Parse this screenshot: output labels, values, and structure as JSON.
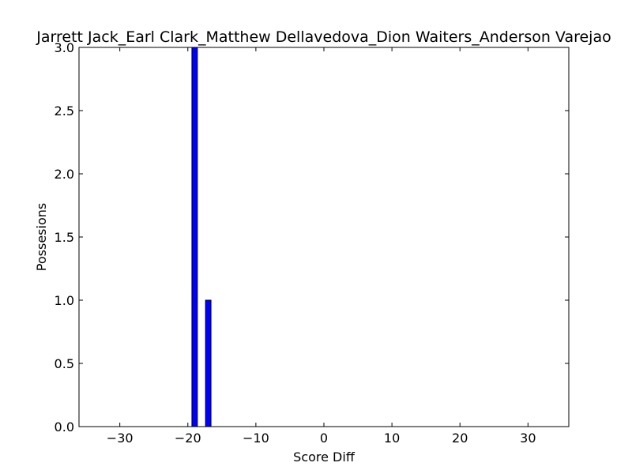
{
  "chart_data": {
    "type": "bar",
    "title": "Jarrett Jack_Earl Clark_Matthew Dellavedova_Dion Waiters_Anderson Varejao",
    "xlabel": "Score Diff",
    "ylabel": "Possesions",
    "xlim": [
      -36,
      36
    ],
    "ylim": [
      0,
      3.0
    ],
    "xticks": [
      -30,
      -20,
      -10,
      0,
      10,
      20,
      30
    ],
    "xtick_labels": [
      "−30",
      "−20",
      "−10",
      "0",
      "10",
      "20",
      "30"
    ],
    "yticks": [
      0.0,
      0.5,
      1.0,
      1.5,
      2.0,
      2.5,
      3.0
    ],
    "ytick_labels": [
      "0.0",
      "0.5",
      "1.0",
      "1.5",
      "2.0",
      "2.5",
      "3.0"
    ],
    "bar_width": 0.8,
    "bar_color": "#0000ff",
    "grid": false,
    "x": [
      -35,
      -34,
      -33,
      -32,
      -31,
      -30,
      -29,
      -28,
      -27,
      -26,
      -25,
      -24,
      -23,
      -22,
      -21,
      -20,
      -19,
      -18,
      -17,
      -16,
      -15,
      -14,
      -13,
      -12,
      -11,
      -10,
      -9,
      -8,
      -7,
      -6,
      -5,
      -4,
      -3,
      -2,
      -1,
      0,
      1,
      2,
      3,
      4,
      5,
      6,
      7,
      8,
      9,
      10,
      11,
      12,
      13,
      14,
      15,
      16,
      17,
      18,
      19,
      20,
      21,
      22,
      23,
      24,
      25,
      26,
      27,
      28,
      29,
      30,
      31,
      32,
      33,
      34,
      35
    ],
    "values": [
      0,
      0,
      0,
      0,
      0,
      0,
      0,
      0,
      0,
      0,
      0,
      0,
      0,
      0,
      0,
      0,
      3,
      0,
      1,
      0,
      0,
      0,
      0,
      0,
      0,
      0,
      0,
      0,
      0,
      0,
      0,
      0,
      0,
      0,
      0,
      0,
      0,
      0,
      0,
      0,
      0,
      0,
      0,
      0,
      0,
      0,
      0,
      0,
      0,
      0,
      0,
      0,
      0,
      0,
      0,
      0,
      0,
      0,
      0,
      0,
      0,
      0,
      0,
      0,
      0,
      0,
      0,
      0,
      0,
      0,
      0
    ]
  }
}
